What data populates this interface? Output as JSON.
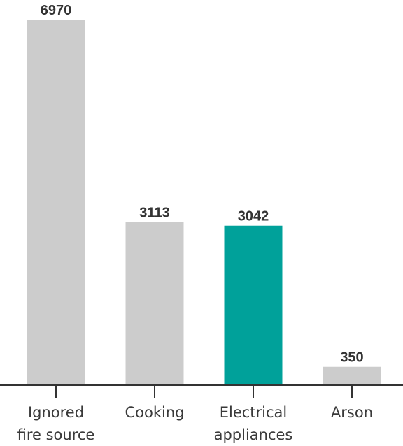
{
  "chart_data": {
    "type": "bar",
    "categories": [
      [
        "Ignored",
        "fire source"
      ],
      [
        "Cooking"
      ],
      [
        "Electrical",
        "appliances"
      ],
      [
        "Arson"
      ]
    ],
    "values": [
      6970,
      3113,
      3042,
      350
    ],
    "value_labels": [
      "6970",
      "3113",
      "3042",
      "350"
    ],
    "highlight_index": 2,
    "ylim": [
      0,
      6970
    ],
    "grid": false,
    "colors": {
      "default": "#cccccc",
      "highlight": "#00a19a",
      "axis": "#333333",
      "value_text": "#333333",
      "tick_text": "#3a3a3a"
    }
  }
}
